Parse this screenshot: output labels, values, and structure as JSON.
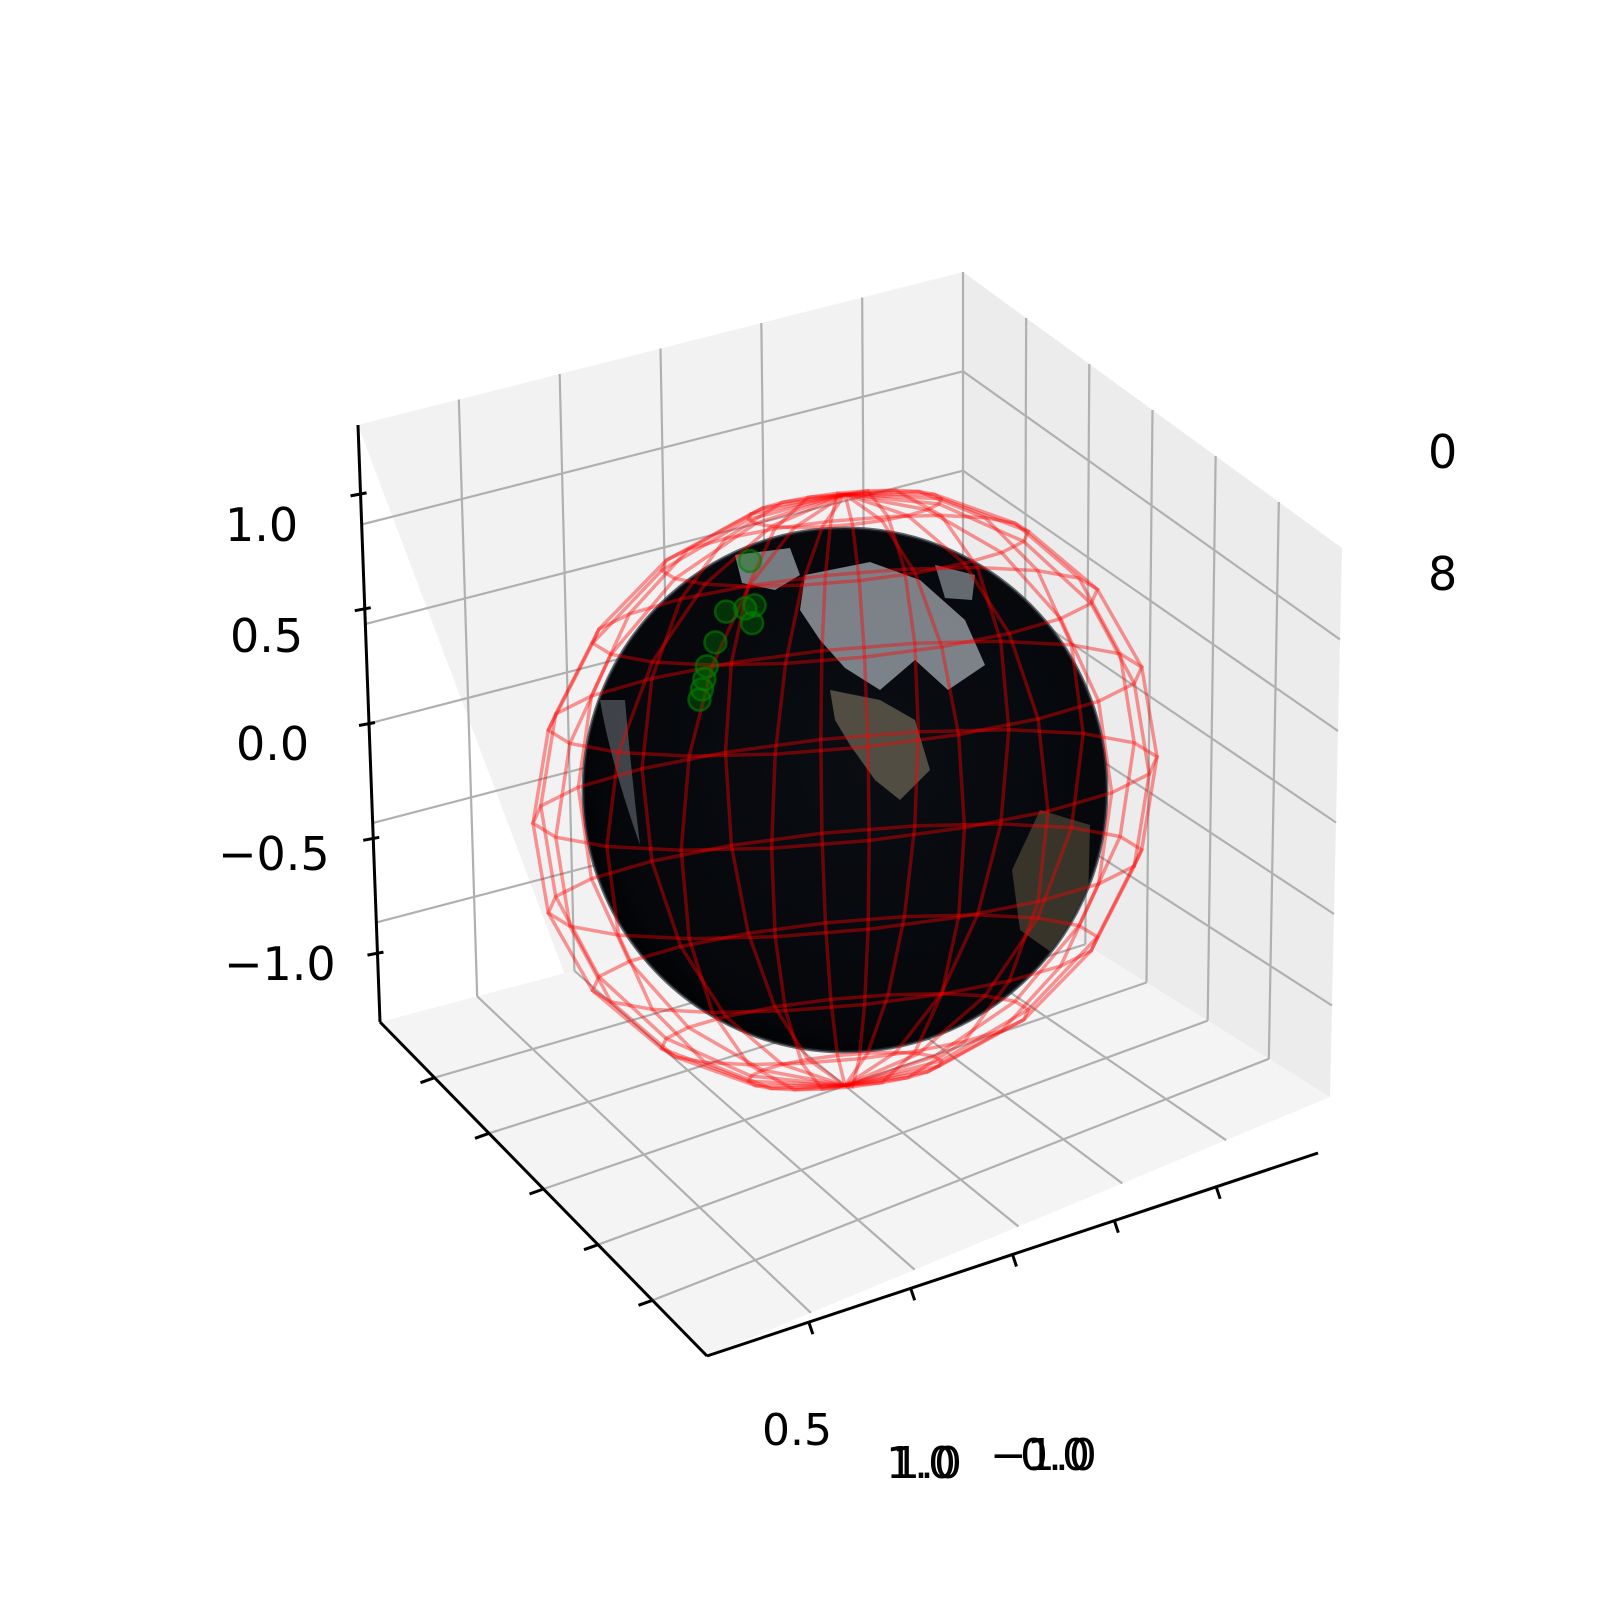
{
  "chart_data": {
    "type": "scatter",
    "projection": "3d",
    "title": "",
    "xlabel": "",
    "ylabel": "",
    "zlabel": "",
    "grid": true,
    "zlim": [
      -1.3,
      1.3
    ],
    "z_ticks": [
      "1.0",
      "0.5",
      "0.0",
      "−0.5",
      "−1.0"
    ],
    "bottom_tick_fragments": [
      "0.5",
      "1.0",
      "1.0",
      "−1.0",
      "0.0"
    ],
    "right_tick_fragments": [
      "0",
      "8"
    ],
    "surfaces": [
      {
        "name": "",
        "kind": "textured sphere",
        "radius": 1.0,
        "texture": "earth-night"
      },
      {
        "name": "",
        "kind": "wireframe sphere",
        "radius": 1.2,
        "color": "#ff0000",
        "alpha": 0.4
      }
    ],
    "series": [
      {
        "name": "",
        "kind": "scatter",
        "color": "#008000",
        "alpha": 0.35,
        "points": [
          {
            "x": -0.58,
            "y": 0.45,
            "z": 1.08
          },
          {
            "x": -0.7,
            "y": 0.5,
            "z": 0.9
          },
          {
            "x": -0.62,
            "y": 0.5,
            "z": 0.9
          },
          {
            "x": -0.59,
            "y": 0.52,
            "z": 0.91
          },
          {
            "x": -0.6,
            "y": 0.52,
            "z": 0.84
          },
          {
            "x": -0.74,
            "y": 0.49,
            "z": 0.78
          },
          {
            "x": -0.78,
            "y": 0.5,
            "z": 0.69
          },
          {
            "x": -0.79,
            "y": 0.5,
            "z": 0.64
          },
          {
            "x": -0.8,
            "y": 0.5,
            "z": 0.6
          },
          {
            "x": -0.81,
            "y": 0.5,
            "z": 0.56
          }
        ]
      }
    ]
  }
}
